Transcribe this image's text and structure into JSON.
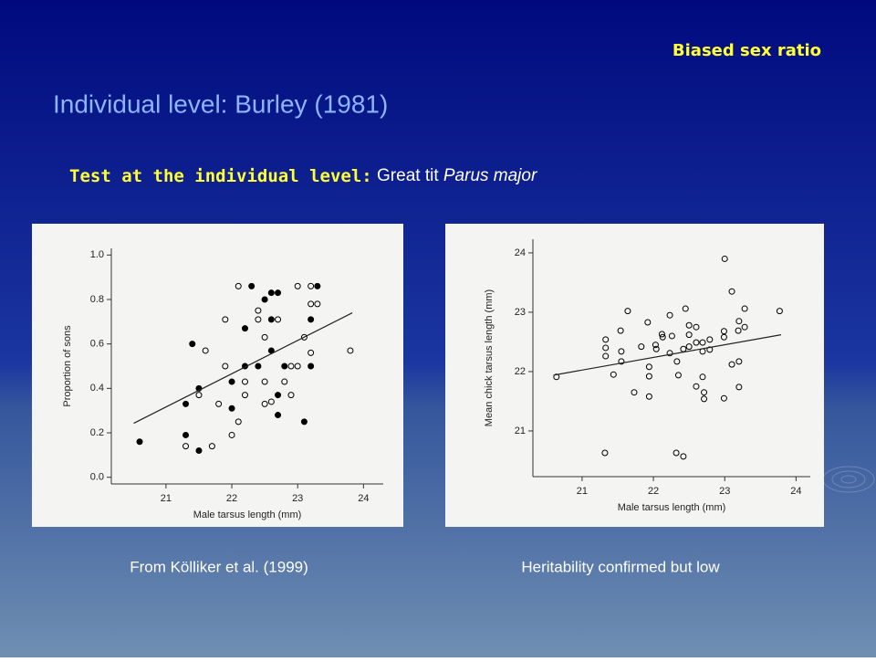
{
  "slide": {
    "tag": "Biased sex ratio",
    "title": "Individual level: Burley (1981)",
    "subtitle_bold": "Test at the individual level:",
    "subtitle_rest": "Great tit",
    "subtitle_italic": "Parus major",
    "caption_left": "From Kölliker et al. (1999)",
    "caption_right": "Heritability confirmed but low"
  },
  "chart_data": [
    {
      "type": "scatter",
      "xlabel": "Male tarsus length (mm)",
      "ylabel": "Proportion of sons",
      "xlim": [
        20.17,
        24.3
      ],
      "ylim": [
        -0.03,
        1.03
      ],
      "xticks": [
        21,
        22,
        23,
        24
      ],
      "yticks": [
        {
          "value": 0,
          "label": "0.0"
        },
        0.2,
        0.4,
        0.6,
        0.8,
        {
          "value": 1,
          "label": "1.0"
        }
      ],
      "series": [
        {
          "color": "#000000",
          "marker": "filled",
          "x": [
            20.6,
            21.3,
            21.5,
            21.3,
            21.4,
            21.5,
            22.0,
            22.2,
            22.4,
            22.2,
            22.3,
            22.5,
            22.6,
            22.7,
            22.6,
            22.6,
            22.7,
            22.7,
            22.8,
            23.1,
            23.2,
            23.2,
            23.3,
            22.0
          ],
          "values": [
            0.16,
            0.19,
            0.12,
            0.33,
            0.6,
            0.4,
            0.43,
            0.5,
            0.5,
            0.67,
            0.86,
            0.8,
            0.83,
            0.83,
            0.71,
            0.57,
            0.37,
            0.28,
            0.5,
            0.25,
            0.5,
            0.71,
            0.86,
            0.31
          ]
        },
        {
          "color": "#000000",
          "marker": "open",
          "x": [
            21.3,
            21.5,
            21.6,
            21.7,
            21.8,
            21.9,
            21.9,
            22.0,
            22.1,
            22.1,
            22.2,
            22.2,
            22.4,
            22.4,
            22.5,
            22.5,
            22.5,
            22.6,
            22.7,
            22.8,
            22.9,
            22.9,
            23.0,
            23.0,
            23.1,
            23.2,
            23.2,
            23.3,
            23.8,
            23.2
          ],
          "values": [
            0.14,
            0.37,
            0.57,
            0.14,
            0.33,
            0.5,
            0.71,
            0.19,
            0.25,
            0.86,
            0.43,
            0.37,
            0.75,
            0.71,
            0.63,
            0.33,
            0.43,
            0.34,
            0.71,
            0.43,
            0.37,
            0.5,
            0.86,
            0.5,
            0.63,
            0.56,
            0.78,
            0.78,
            0.57,
            0.86
          ]
        }
      ],
      "trend": {
        "x": [
          20.51,
          23.83
        ],
        "values": [
          0.243,
          0.74
        ]
      }
    },
    {
      "type": "scatter",
      "xlabel": "Male tarsus length (mm)",
      "ylabel": "Mean chick tarsus length (mm)",
      "xlim": [
        20.31,
        24.2
      ],
      "ylim": [
        20.23,
        24.23
      ],
      "xticks": [
        21,
        22,
        23,
        24
      ],
      "yticks": [
        21,
        22,
        23,
        24
      ],
      "series": [
        {
          "color": "#000000",
          "marker": "open",
          "x": [
            20.64,
            21.33,
            21.33,
            21.33,
            21.32,
            21.44,
            21.54,
            21.55,
            21.55,
            21.64,
            21.73,
            21.83,
            21.92,
            21.94,
            21.94,
            21.94,
            22.03,
            22.04,
            22.12,
            22.13,
            22.23,
            22.23,
            22.26,
            22.32,
            22.33,
            22.35,
            22.42,
            22.45,
            22.42,
            22.5,
            22.5,
            22.5,
            22.6,
            22.6,
            22.6,
            22.69,
            22.69,
            22.69,
            22.71,
            22.71,
            22.79,
            22.79,
            22.99,
            22.99,
            22.99,
            23.0,
            23.1,
            23.1,
            23.19,
            23.2,
            23.2,
            23.2,
            23.28,
            23.28,
            23.77
          ],
          "values": [
            21.91,
            22.54,
            22.4,
            22.26,
            20.63,
            21.95,
            22.69,
            22.34,
            22.17,
            23.02,
            21.65,
            22.42,
            22.83,
            22.08,
            21.58,
            21.92,
            22.45,
            22.38,
            22.63,
            22.58,
            22.95,
            22.31,
            22.6,
            20.63,
            22.17,
            21.94,
            20.57,
            23.06,
            22.38,
            22.62,
            22.78,
            22.42,
            22.75,
            22.49,
            21.75,
            21.91,
            22.34,
            22.49,
            21.54,
            21.65,
            22.54,
            22.37,
            22.68,
            22.58,
            21.55,
            23.9,
            23.35,
            22.12,
            22.69,
            22.17,
            21.74,
            22.85,
            22.75,
            23.06,
            23.02
          ]
        }
      ],
      "trend": {
        "x": [
          20.6,
          23.79
        ],
        "values": [
          21.94,
          22.62
        ]
      }
    }
  ]
}
